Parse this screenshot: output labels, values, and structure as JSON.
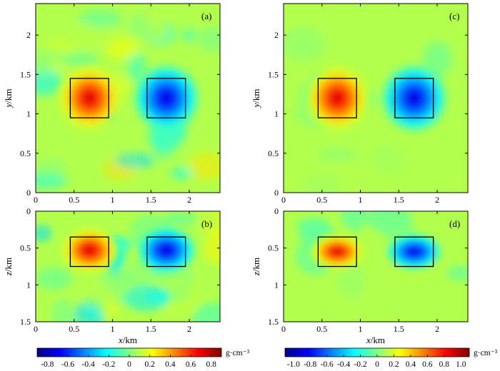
{
  "chart_data": [
    {
      "id": "a",
      "type": "heatmap",
      "panel_label": "(a)",
      "view": "plan",
      "xlim": [
        0,
        2.4
      ],
      "ylim": [
        0,
        2.4
      ],
      "xticks": [
        "0",
        "0.5",
        "1",
        "1.5",
        "2"
      ],
      "yticks": [
        "0",
        "0.5",
        "1",
        "1.5",
        "2"
      ],
      "xlabel": "",
      "ylabel": "y/km",
      "color_range": [
        -0.8,
        0.8
      ],
      "bodies": [
        {
          "x": [
            0.45,
            0.95
          ],
          "y": [
            0.95,
            1.45
          ],
          "density": 0.8
        },
        {
          "x": [
            1.45,
            1.95
          ],
          "y": [
            0.95,
            1.45
          ],
          "density": -0.8
        }
      ]
    },
    {
      "id": "b",
      "type": "heatmap",
      "panel_label": "(b)",
      "view": "section",
      "xlim": [
        0,
        2.4
      ],
      "ylim": [
        0,
        1.5
      ],
      "xticks": [
        "0",
        "0.5",
        "1",
        "1.5",
        "2"
      ],
      "yticks": [
        "0",
        "0.5",
        "1",
        "1.5"
      ],
      "xlabel": "x/km",
      "ylabel": "z/km",
      "color_range": [
        -0.8,
        0.8
      ],
      "bodies": [
        {
          "x": [
            0.45,
            0.95
          ],
          "z": [
            0.35,
            0.75
          ],
          "density": 0.8
        },
        {
          "x": [
            1.45,
            1.95
          ],
          "z": [
            0.35,
            0.75
          ],
          "density": -0.8
        }
      ]
    },
    {
      "id": "c",
      "type": "heatmap",
      "panel_label": "(c)",
      "view": "plan",
      "xlim": [
        0,
        2.4
      ],
      "ylim": [
        0,
        2.4
      ],
      "xticks": [
        "0",
        "0.5",
        "1",
        "1.5",
        "2"
      ],
      "yticks": [
        "0",
        "0.5",
        "1",
        "1.5",
        "2"
      ],
      "xlabel": "",
      "ylabel": "y/km",
      "color_range": [
        -1.0,
        1.0
      ],
      "bodies": [
        {
          "x": [
            0.45,
            0.95
          ],
          "y": [
            0.95,
            1.45
          ],
          "density": 1.0
        },
        {
          "x": [
            1.45,
            1.95
          ],
          "y": [
            0.95,
            1.45
          ],
          "density": -1.0
        }
      ]
    },
    {
      "id": "d",
      "type": "heatmap",
      "panel_label": "(d)",
      "view": "section",
      "xlim": [
        0,
        2.4
      ],
      "ylim": [
        0,
        1.5
      ],
      "xticks": [
        "0",
        "0.5",
        "1",
        "1.5",
        "2"
      ],
      "yticks": [
        "0",
        "0.5",
        "1",
        "1.5"
      ],
      "xlabel": "x/km",
      "ylabel": "z/km",
      "color_range": [
        -1.0,
        1.0
      ],
      "bodies": [
        {
          "x": [
            0.45,
            0.95
          ],
          "z": [
            0.35,
            0.75
          ],
          "density": 1.0
        },
        {
          "x": [
            1.45,
            1.95
          ],
          "z": [
            0.35,
            0.75
          ],
          "density": -1.0
        }
      ]
    }
  ],
  "colorbars": [
    {
      "id": "left",
      "ticks": [
        "-0.8",
        "-0.6",
        "-0.4",
        "-0.2",
        "0",
        "0.2",
        "0.4",
        "0.6",
        "0.8"
      ],
      "range": [
        -0.8,
        0.8
      ],
      "unit": "g·cm⁻³"
    },
    {
      "id": "right",
      "ticks": [
        "-1.0",
        "-0.8",
        "-0.6",
        "-0.4",
        "-0.2",
        "0",
        "0.2",
        "0.4",
        "0.6",
        "0.8",
        "1.0"
      ],
      "range": [
        -1.0,
        1.0
      ],
      "unit": "g·cm⁻³"
    }
  ],
  "colormap": [
    "#00008f",
    "#0000ff",
    "#0080ff",
    "#00ffff",
    "#80ff80",
    "#ffff00",
    "#ff8000",
    "#ff0000",
    "#800000"
  ]
}
